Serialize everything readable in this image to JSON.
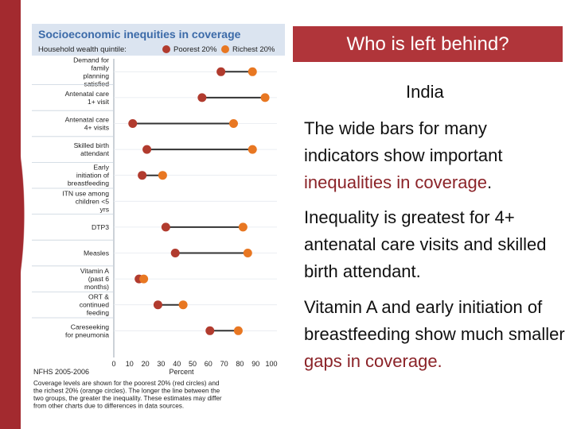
{
  "slide": {
    "title": "Who is left behind?",
    "country": "India",
    "p1_text": "The wide bars for many indicators show important ",
    "p1_highlight": "inequalities in coverage",
    "p1_end": ".",
    "p2_text": "Inequality is greatest for 4+ antenatal care visits and skilled birth attendant.",
    "p3_text": "Vitamin A and early initiation of breastfeeding show much smaller ",
    "p3_highlight": "gaps in coverage."
  },
  "colors": {
    "accent": "#b0353a",
    "highlight": "#8b2328",
    "poorest": "#b13b2e",
    "richest": "#e87722",
    "chart_header": "#dbe4f0",
    "chart_title": "#3b6aa8"
  },
  "chart_data": {
    "type": "dumbbell",
    "title": "Socioeconomic inequities in coverage",
    "legend_label": "Household wealth quintile:",
    "series": [
      {
        "name": "Poorest 20%",
        "color": "#b13b2e"
      },
      {
        "name": "Richest 20%",
        "color": "#e87722"
      }
    ],
    "categories": [
      "Demand for family planning satisfied",
      "Antenatal care 1+ visit",
      "Antenatal care 4+ visits",
      "Skilled birth attendant",
      "Early initiation of breastfeeding",
      "ITN use among children <5 yrs",
      "DTP3",
      "Measles",
      "Vitamin A (past 6 months)",
      "ORT & continued feeding",
      "Careseeking for pneumonia"
    ],
    "poorest": [
      68,
      56,
      12,
      21,
      18,
      null,
      33,
      39,
      16,
      28,
      61
    ],
    "richest": [
      88,
      96,
      76,
      88,
      31,
      null,
      82,
      85,
      19,
      44,
      79
    ],
    "xlim": [
      0,
      100
    ],
    "xticks": [
      "0",
      "10",
      "20",
      "30",
      "40",
      "50",
      "60",
      "70",
      "80",
      "90",
      "100"
    ],
    "xlabel": "Percent",
    "source": "NFHS 2005-2006",
    "note": "Coverage levels are shown for the poorest 20% (red circles) and the richest 20% (orange circles). The longer the line between the two groups, the greater the inequality. These estimates may differ from other charts due to differences in data sources."
  }
}
